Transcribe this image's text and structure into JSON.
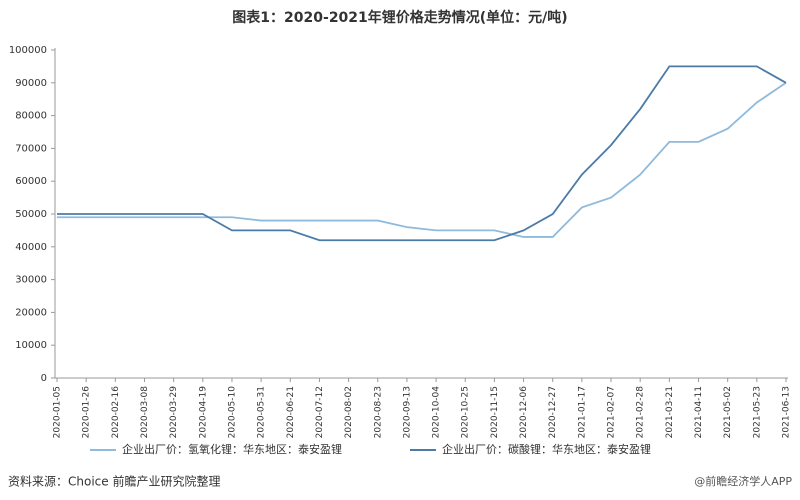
{
  "chart_data": {
    "type": "line",
    "title": "图表1：2020-2021年锂价格走势情况(单位：元/吨)",
    "source": "资料来源：Choice 前瞻产业研究院整理",
    "watermark": "@前瞻经济学人APP",
    "categories": [
      "2020-01-05",
      "2020-01-26",
      "2020-02-16",
      "2020-03-08",
      "2020-03-29",
      "2020-04-19",
      "2020-05-10",
      "2020-05-31",
      "2020-06-21",
      "2020-07-12",
      "2020-08-02",
      "2020-08-23",
      "2020-09-13",
      "2020-10-04",
      "2020-10-25",
      "2020-11-15",
      "2020-12-06",
      "2020-12-27",
      "2021-01-17",
      "2021-02-07",
      "2021-02-28",
      "2021-03-21",
      "2021-04-11",
      "2021-05-02",
      "2021-05-23",
      "2021-06-13"
    ],
    "series": [
      {
        "name": "企业出厂价：氢氧化锂：华东地区：泰安盈锂",
        "color": "#8fbadb",
        "values": [
          49000,
          49000,
          49000,
          49000,
          49000,
          49000,
          49000,
          48000,
          48000,
          48000,
          48000,
          48000,
          46000,
          45000,
          45000,
          45000,
          43000,
          43000,
          52000,
          55000,
          62000,
          72000,
          72000,
          76000,
          84000,
          90000
        ]
      },
      {
        "name": "企业出厂价：碳酸锂：华东地区：泰安盈锂",
        "color": "#4b7ba8",
        "values": [
          50000,
          50000,
          50000,
          50000,
          50000,
          50000,
          45000,
          45000,
          45000,
          42000,
          42000,
          42000,
          42000,
          42000,
          42000,
          42000,
          45000,
          50000,
          62000,
          71000,
          82000,
          95000,
          95000,
          95000,
          95000,
          90000
        ]
      }
    ],
    "ylim": [
      0,
      100000
    ],
    "yticks": [
      0,
      10000,
      20000,
      30000,
      40000,
      50000,
      60000,
      70000,
      80000,
      90000,
      100000
    ],
    "grid": false
  }
}
